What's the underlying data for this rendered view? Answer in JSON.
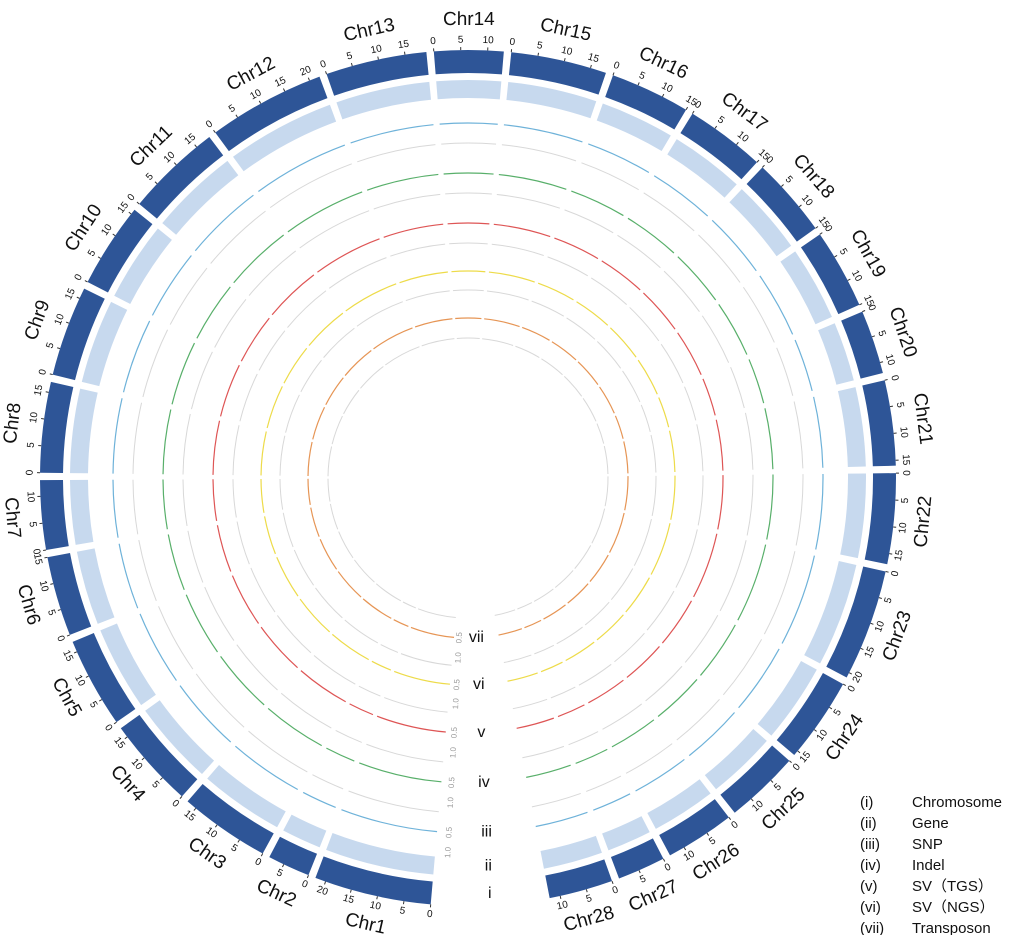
{
  "chart_data": {
    "type": "circos",
    "chromosomes": [
      {
        "name": "Chr1",
        "length": 22,
        "ticks": [
          0,
          5,
          10,
          15,
          20
        ]
      },
      {
        "name": "Chr2",
        "length": 8,
        "ticks": [
          0,
          5
        ]
      },
      {
        "name": "Chr3",
        "length": 17,
        "ticks": [
          0,
          5,
          10,
          15
        ]
      },
      {
        "name": "Chr4",
        "length": 17,
        "ticks": [
          0,
          5,
          10,
          15
        ]
      },
      {
        "name": "Chr5",
        "length": 17,
        "ticks": [
          0,
          5,
          10,
          15
        ]
      },
      {
        "name": "Chr6",
        "length": 15,
        "ticks": [
          0,
          5,
          10,
          15
        ]
      },
      {
        "name": "Chr7",
        "length": 13,
        "ticks": [
          0,
          5,
          10
        ]
      },
      {
        "name": "Chr8",
        "length": 17,
        "ticks": [
          0,
          5,
          10,
          15
        ]
      },
      {
        "name": "Chr9",
        "length": 17,
        "ticks": [
          0,
          5,
          10,
          15
        ]
      },
      {
        "name": "Chr10",
        "length": 16,
        "ticks": [
          0,
          5,
          10,
          15
        ]
      },
      {
        "name": "Chr11",
        "length": 18,
        "ticks": [
          0,
          5,
          10,
          15
        ]
      },
      {
        "name": "Chr12",
        "length": 22,
        "ticks": [
          0,
          5,
          10,
          15,
          20
        ]
      },
      {
        "name": "Chr13",
        "length": 19,
        "ticks": [
          0,
          5,
          10,
          15
        ]
      },
      {
        "name": "Chr14",
        "length": 13,
        "ticks": [
          0,
          5,
          10
        ]
      },
      {
        "name": "Chr15",
        "length": 18,
        "ticks": [
          0,
          5,
          10,
          15
        ]
      },
      {
        "name": "Chr16",
        "length": 15,
        "ticks": [
          0,
          5,
          10,
          15
        ]
      },
      {
        "name": "Chr17",
        "length": 15,
        "ticks": [
          0,
          5,
          10,
          15
        ]
      },
      {
        "name": "Chr18",
        "length": 15,
        "ticks": [
          0,
          5,
          10,
          15
        ]
      },
      {
        "name": "Chr19",
        "length": 15,
        "ticks": [
          0,
          5,
          10,
          15
        ]
      },
      {
        "name": "Chr20",
        "length": 12,
        "ticks": [
          0,
          5,
          10
        ]
      },
      {
        "name": "Chr21",
        "length": 16,
        "ticks": [
          0,
          5,
          10,
          15
        ]
      },
      {
        "name": "Chr22",
        "length": 17,
        "ticks": [
          0,
          5,
          10,
          15
        ]
      },
      {
        "name": "Chr23",
        "length": 21,
        "ticks": [
          0,
          5,
          10,
          15,
          20
        ]
      },
      {
        "name": "Chr24",
        "length": 16,
        "ticks": [
          0,
          5,
          10,
          15
        ]
      },
      {
        "name": "Chr25",
        "length": 14,
        "ticks": [
          0,
          5,
          10
        ]
      },
      {
        "name": "Chr26",
        "length": 13,
        "ticks": [
          0,
          5,
          10
        ]
      },
      {
        "name": "Chr27",
        "length": 9,
        "ticks": [
          0,
          5
        ]
      },
      {
        "name": "Chr28",
        "length": 12,
        "ticks": [
          0,
          5,
          10
        ]
      }
    ],
    "tracks": [
      {
        "label": "i",
        "color": "#2e5597"
      },
      {
        "label": "ii",
        "color": "#c7d9ee"
      },
      {
        "label": "iii",
        "color": "#4a9fd0",
        "scale": [
          0.5,
          {
            "value": 1,
            "label": "1.0"
          }
        ]
      },
      {
        "label": "iv",
        "color": "#2e9b45",
        "scale": [
          0.5,
          {
            "value": 1,
            "label": "1.0"
          }
        ]
      },
      {
        "label": "v",
        "color": "#d62b2b",
        "scale": [
          0.5,
          {
            "value": 1,
            "label": "1.0"
          }
        ]
      },
      {
        "label": "vi",
        "color": "#e8d21c",
        "scale": [
          0.5,
          {
            "value": 1,
            "label": "1.0"
          }
        ]
      },
      {
        "label": "vii",
        "color": "#e07b2a",
        "scale": [
          0.5,
          {
            "value": 1,
            "label": "1.0"
          }
        ]
      }
    ],
    "legend": [
      {
        "id": "(i)",
        "name": "Chromosome"
      },
      {
        "id": "(ii)",
        "name": "Gene"
      },
      {
        "id": "(iii)",
        "name": "SNP"
      },
      {
        "id": "(iv)",
        "name": "Indel"
      },
      {
        "id": "(v)",
        "name": "SV（TGS）"
      },
      {
        "id": "(vi)",
        "name": "SV（NGS）"
      },
      {
        "id": "(vii)",
        "name": "Transposon"
      }
    ]
  }
}
